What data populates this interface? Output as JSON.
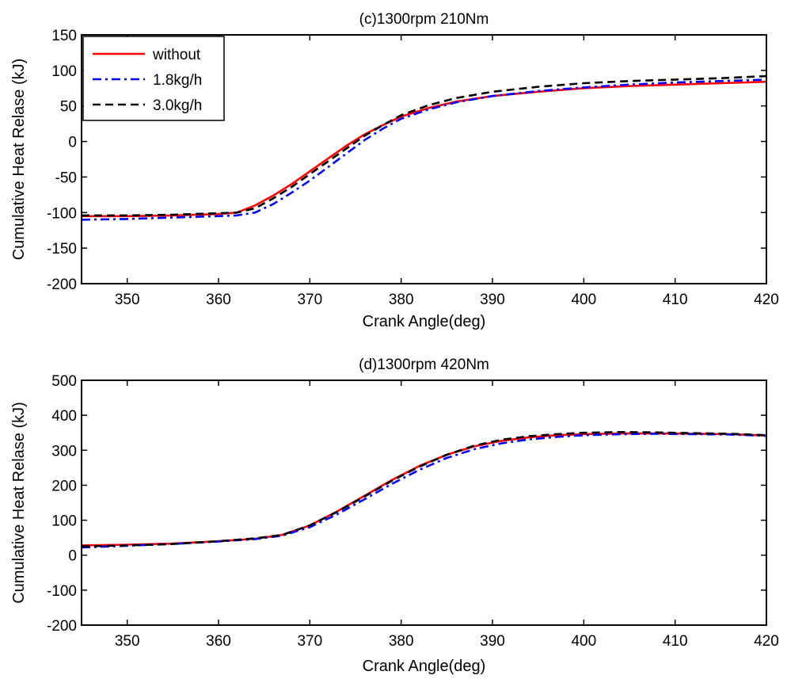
{
  "chart_data": [
    {
      "type": "line",
      "title": "(c)1300rpm 210Nm",
      "xlabel": "Crank Angle(deg)",
      "ylabel": "Cumulative Heat Relase (kJ)",
      "xlim": [
        345,
        420
      ],
      "ylim": [
        -200,
        150
      ],
      "xticks": [
        "350",
        "360",
        "370",
        "380",
        "390",
        "400",
        "410",
        "420"
      ],
      "yticks": [
        "-200",
        "-150",
        "-100",
        "-50",
        "0",
        "50",
        "100",
        "150"
      ],
      "grid": false,
      "legend": {
        "placement": "top-left",
        "entries": [
          "without",
          "1.8kg/h",
          "3.0kg/h"
        ]
      },
      "series": [
        {
          "name": "without",
          "color": "#ff0000",
          "style": "solid",
          "x": [
            345,
            350,
            355,
            360,
            362,
            364,
            366,
            368,
            370,
            372,
            374,
            376,
            378,
            380,
            383,
            386,
            390,
            395,
            400,
            405,
            410,
            415,
            420
          ],
          "y": [
            -105,
            -105,
            -104,
            -102,
            -100,
            -90,
            -76,
            -60,
            -42,
            -24,
            -6,
            10,
            23,
            35,
            47,
            56,
            64,
            70,
            75,
            78,
            80,
            82,
            84
          ]
        },
        {
          "name": "1.8kg/h",
          "color": "#0000ff",
          "style": "dashdot",
          "x": [
            345,
            350,
            355,
            360,
            362,
            364,
            366,
            368,
            370,
            372,
            374,
            376,
            378,
            380,
            383,
            386,
            390,
            395,
            400,
            405,
            410,
            415,
            420
          ],
          "y": [
            -110,
            -109,
            -107,
            -105,
            -104,
            -100,
            -88,
            -72,
            -55,
            -36,
            -17,
            2,
            18,
            32,
            45,
            55,
            64,
            71,
            76,
            80,
            83,
            85,
            87
          ]
        },
        {
          "name": "3.0kg/h",
          "color": "#000000",
          "style": "dashed",
          "x": [
            345,
            350,
            355,
            360,
            362,
            364,
            366,
            368,
            370,
            372,
            374,
            376,
            378,
            380,
            383,
            386,
            390,
            395,
            400,
            405,
            410,
            415,
            420
          ],
          "y": [
            -104,
            -104,
            -103,
            -101,
            -100,
            -94,
            -80,
            -64,
            -46,
            -28,
            -10,
            8,
            23,
            37,
            51,
            61,
            70,
            77,
            82,
            85,
            87,
            89,
            92
          ]
        }
      ]
    },
    {
      "type": "line",
      "title": "(d)1300rpm 420Nm",
      "xlabel": "Crank Angle(deg)",
      "ylabel": "Cumulative Heat Relase (kJ)",
      "xlim": [
        345,
        420
      ],
      "ylim": [
        -200,
        500
      ],
      "xticks": [
        "350",
        "360",
        "370",
        "380",
        "390",
        "400",
        "410",
        "420"
      ],
      "yticks": [
        "-200",
        "-100",
        "0",
        "100",
        "200",
        "300",
        "400",
        "500"
      ],
      "grid": false,
      "series": [
        {
          "name": "without",
          "color": "#ff0000",
          "style": "solid",
          "x": [
            345,
            350,
            355,
            360,
            364,
            367,
            370,
            373,
            376,
            379,
            382,
            385,
            388,
            391,
            394,
            397,
            400,
            404,
            408,
            412,
            416,
            420
          ],
          "y": [
            28,
            30,
            33,
            40,
            47,
            58,
            85,
            125,
            170,
            215,
            255,
            287,
            311,
            327,
            337,
            343,
            346,
            348,
            348,
            347,
            346,
            342
          ]
        },
        {
          "name": "1.8kg/h",
          "color": "#0000ff",
          "style": "dashdot",
          "x": [
            345,
            350,
            355,
            360,
            364,
            367,
            370,
            373,
            376,
            379,
            382,
            385,
            388,
            391,
            394,
            397,
            400,
            404,
            408,
            412,
            416,
            420
          ],
          "y": [
            22,
            27,
            32,
            39,
            46,
            56,
            80,
            117,
            160,
            204,
            244,
            278,
            303,
            320,
            331,
            338,
            343,
            346,
            347,
            346,
            345,
            341
          ]
        },
        {
          "name": "3.0kg/h",
          "color": "#000000",
          "style": "dashed",
          "x": [
            345,
            350,
            355,
            360,
            364,
            367,
            370,
            373,
            376,
            379,
            382,
            385,
            388,
            391,
            394,
            397,
            400,
            404,
            408,
            412,
            416,
            420
          ],
          "y": [
            25,
            28,
            32,
            40,
            48,
            58,
            85,
            124,
            168,
            213,
            253,
            287,
            313,
            330,
            340,
            346,
            350,
            352,
            351,
            349,
            347,
            343
          ]
        }
      ]
    }
  ]
}
